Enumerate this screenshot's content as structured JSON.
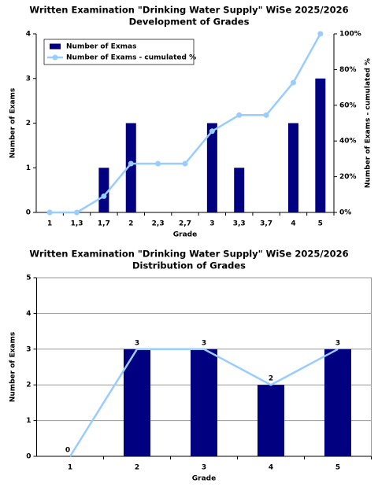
{
  "chart_data": [
    {
      "type": "bar",
      "title": "Written Examination \"Drinking Water Supply\" WiSe 2025/2026",
      "subtitle": "Development of Grades",
      "x_label": "Grade",
      "y_label": "Number of Exams",
      "y2_label": "Number of Exams - cumulated %",
      "categories": [
        "1",
        "1,3",
        "1,7",
        "2",
        "2,3",
        "2,7",
        "3",
        "3,3",
        "3,7",
        "4",
        "5"
      ],
      "series": [
        {
          "name": "Number of Exmas",
          "type": "bar",
          "color": "#000080",
          "values": [
            0,
            0,
            1,
            2,
            0,
            0,
            2,
            1,
            0,
            2,
            3
          ]
        },
        {
          "name": "Number of Exams - cumulated %",
          "type": "line",
          "axis": "y2",
          "color": "#99ccff",
          "markers": true,
          "values": [
            0,
            0,
            9.1,
            27.3,
            27.3,
            27.3,
            45.5,
            54.5,
            54.5,
            72.7,
            100
          ]
        }
      ],
      "ylim": [
        0,
        4
      ],
      "yticks": [
        0,
        1,
        2,
        3,
        4
      ],
      "y2lim": [
        0,
        100
      ],
      "y2ticks": [
        {
          "value": 0,
          "label": "0%"
        },
        {
          "value": 20,
          "label": "20%"
        },
        {
          "value": 40,
          "label": "40%"
        },
        {
          "value": 60,
          "label": "60%"
        },
        {
          "value": 80,
          "label": "80%"
        },
        {
          "value": 100,
          "label": "100%"
        }
      ],
      "grid": false,
      "legend": "top-left"
    },
    {
      "type": "bar",
      "title": "Written Examination \"Drinking Water Supply\" WiSe 2025/2026",
      "subtitle": "Distribution of Grades",
      "x_label": "Grade",
      "y_label": "Number of Exams",
      "categories": [
        "1",
        "2",
        "3",
        "4",
        "5"
      ],
      "series": [
        {
          "type": "bar",
          "color": "#000080",
          "values": [
            0,
            3,
            3,
            2,
            3
          ]
        },
        {
          "type": "line",
          "color": "#99ccff",
          "data_labels": true,
          "values": [
            0,
            3,
            3,
            2,
            3
          ]
        }
      ],
      "ylim": [
        0,
        5
      ],
      "yticks": [
        0,
        1,
        2,
        3,
        4,
        5
      ],
      "grid": true
    }
  ]
}
